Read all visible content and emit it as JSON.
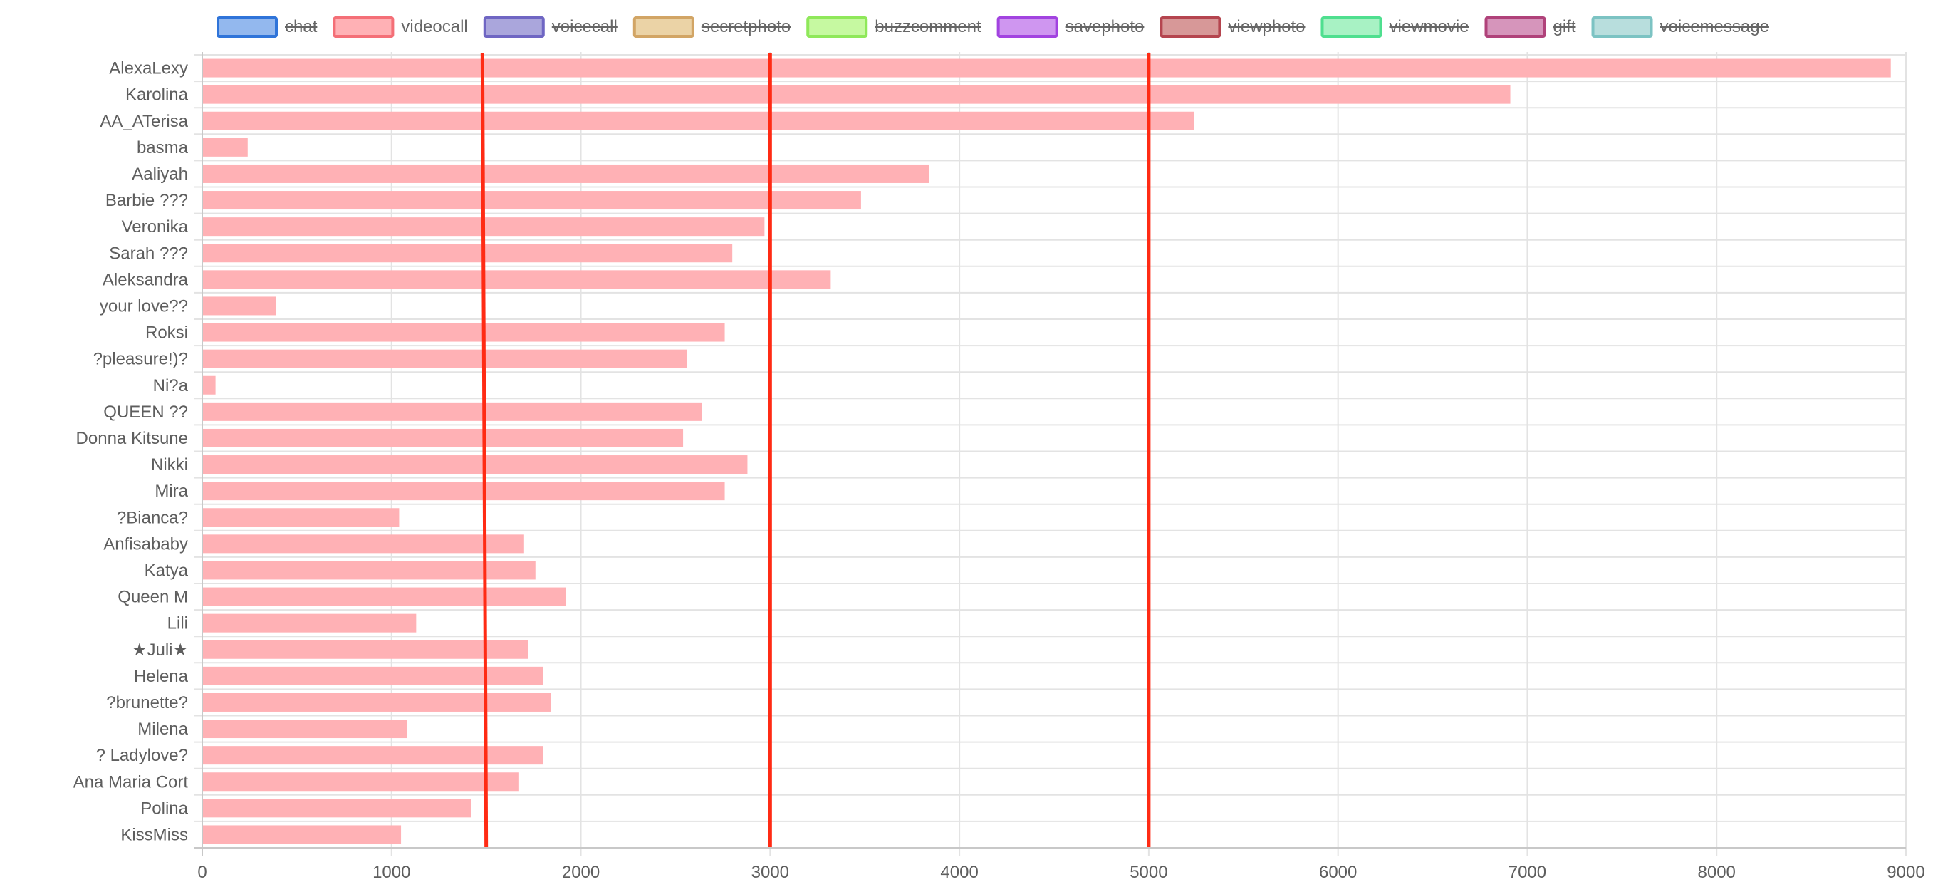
{
  "chart_data": {
    "type": "bar",
    "orientation": "horizontal",
    "legend": {
      "placement": "top",
      "items": [
        {
          "name": "chat",
          "fill": "#93b8ee",
          "stroke": "#2f74d9",
          "hidden": true
        },
        {
          "name": "videocall",
          "fill": "#ffb1b5",
          "stroke": "#f46f77",
          "hidden": false
        },
        {
          "name": "voicecall",
          "fill": "#aaa6dc",
          "stroke": "#6f66c3",
          "hidden": true
        },
        {
          "name": "secretphoto",
          "fill": "#ebd3a6",
          "stroke": "#d2a565",
          "hidden": true
        },
        {
          "name": "buzzcomment",
          "fill": "#c6f9a1",
          "stroke": "#8fe85a",
          "hidden": true
        },
        {
          "name": "savephoto",
          "fill": "#cf96f0",
          "stroke": "#a243e0",
          "hidden": true
        },
        {
          "name": "viewphoto",
          "fill": "#d79898",
          "stroke": "#b5454f",
          "hidden": true
        },
        {
          "name": "viewmovie",
          "fill": "#a8f2c4",
          "stroke": "#4fdf8f",
          "hidden": true
        },
        {
          "name": "gift",
          "fill": "#d695bb",
          "stroke": "#b0427a",
          "hidden": true
        },
        {
          "name": "voicemessage",
          "fill": "#b8dedd",
          "stroke": "#7cc3c3",
          "hidden": true
        }
      ]
    },
    "categories": [
      "AlexaLexy",
      "Karolina",
      "AA_ATerisa",
      "basma",
      "Aaliyah",
      "Barbie ???",
      "Veronika",
      "Sarah ???",
      "Aleksandra",
      "your love??",
      "Roksi",
      "?pleasure!)?",
      "Ni?a",
      "QUEEN ??",
      "Donna Kitsune",
      "Nikki",
      "Mira",
      "?Bianca?",
      "Anfisababy",
      "Katya",
      "Queen M",
      "Lili",
      "★Juli★",
      "Helena",
      "?brunette?",
      "Milena",
      "? Ladylove?",
      "Ana Maria Cort",
      "Polina",
      "KissMiss"
    ],
    "series": [
      {
        "name": "videocall",
        "color": "#ffb1b5",
        "values": [
          8920,
          6910,
          5240,
          240,
          3840,
          3480,
          2970,
          2800,
          3320,
          390,
          2760,
          2560,
          70,
          2640,
          2540,
          2880,
          2760,
          1040,
          1700,
          1760,
          1920,
          1130,
          1720,
          1800,
          1840,
          1080,
          1800,
          1670,
          1420,
          1050
        ]
      }
    ],
    "x_ticks": [
      "0",
      "1000",
      "2000",
      "3000",
      "4000",
      "5000",
      "6000",
      "7000",
      "8000",
      "9000"
    ],
    "xlim": [
      0,
      9000
    ],
    "grid": true,
    "reference_lines": [
      {
        "x_top": 1480,
        "x_bottom": 1500,
        "color": "#ff2b14"
      },
      {
        "x_top": 3000,
        "x_bottom": 3000,
        "color": "#ff2b14"
      },
      {
        "x_top": 5000,
        "x_bottom": 5000,
        "color": "#ff2b14"
      }
    ],
    "colors": {
      "grid": "#e3e3e3",
      "axis": "#c8c8c8",
      "label_text": "#5e5e5e",
      "legend_text": "#666666"
    }
  }
}
